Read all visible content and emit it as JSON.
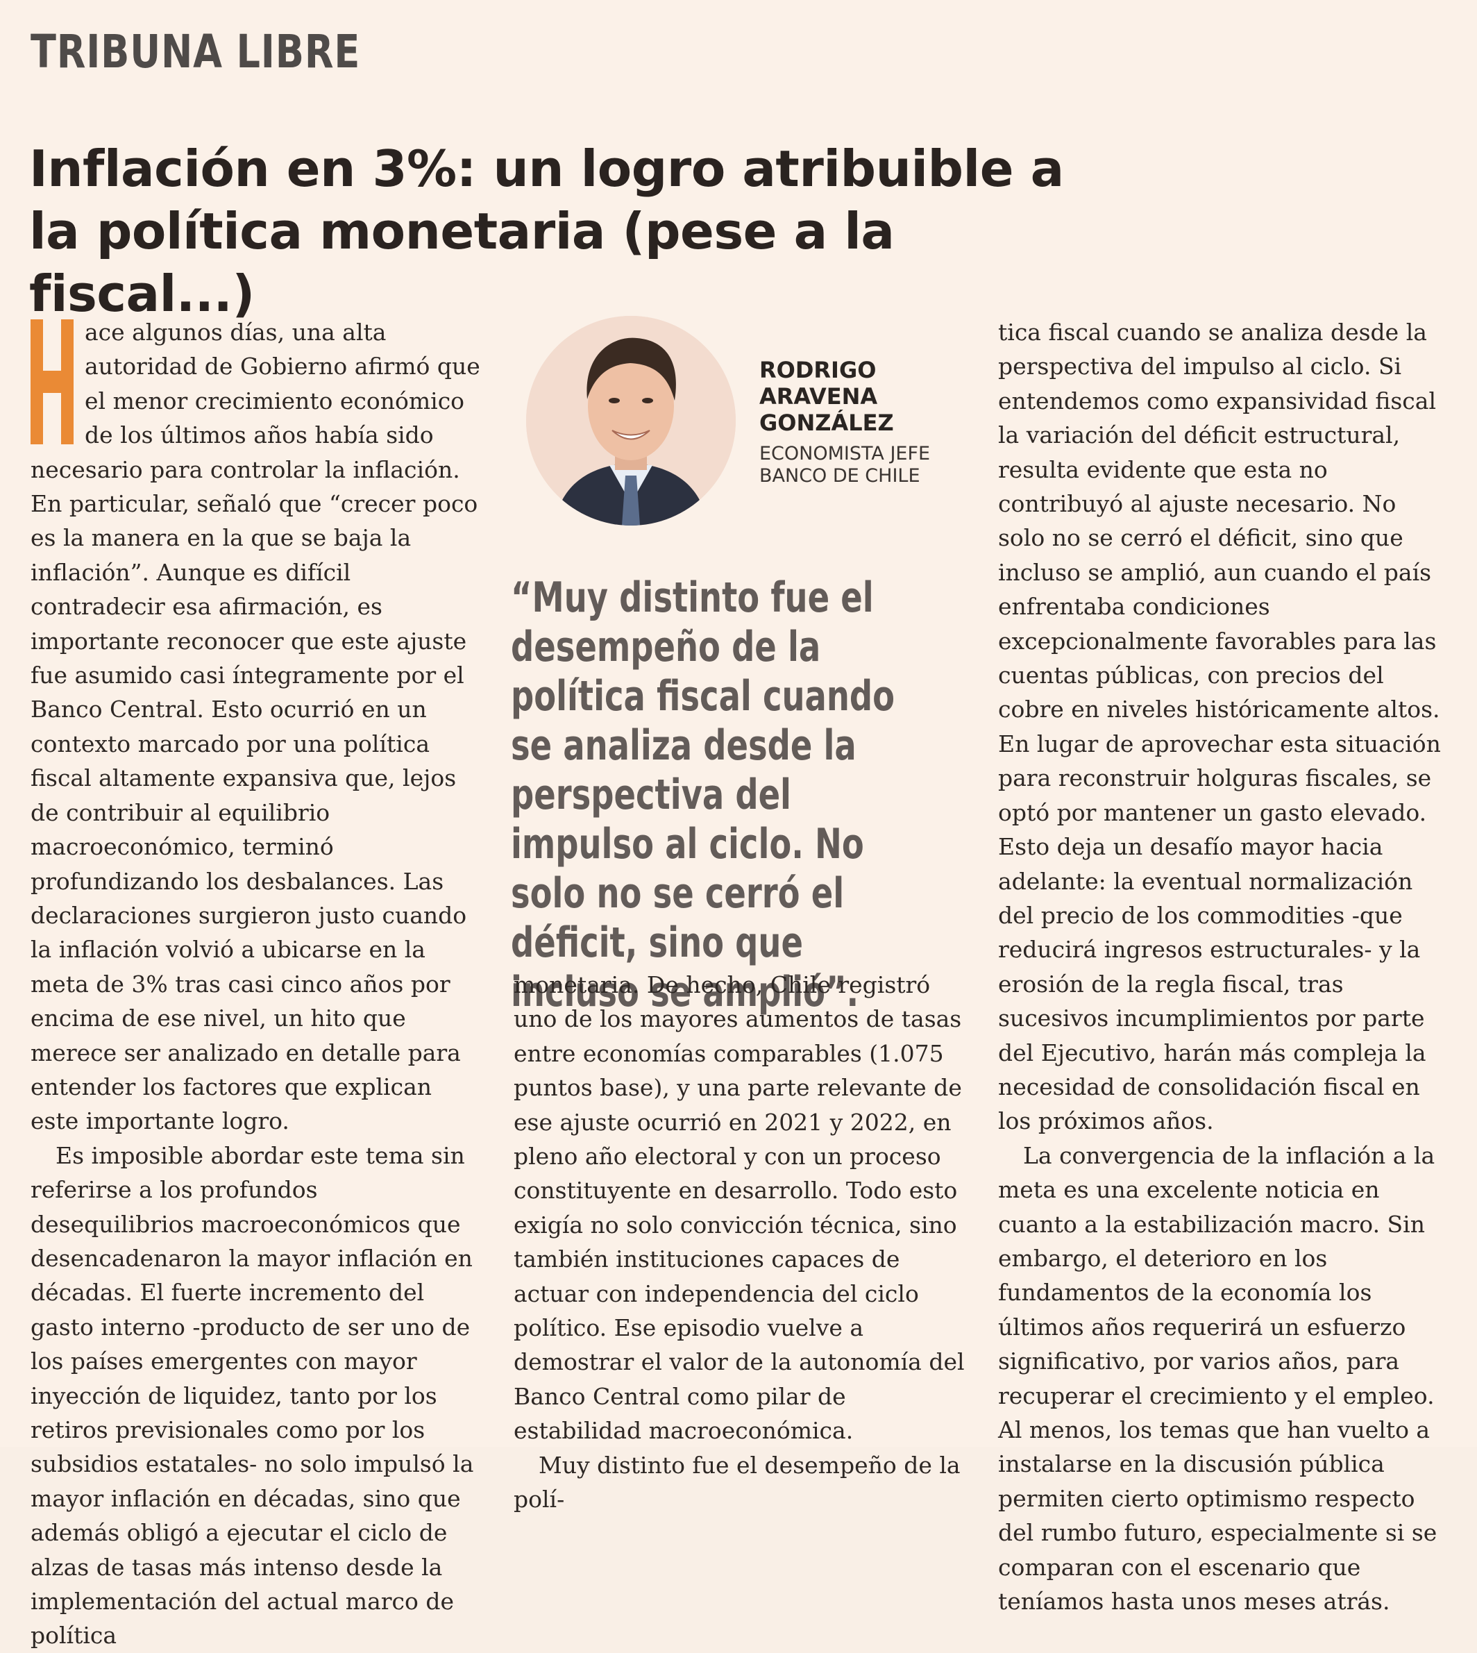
{
  "section": "TRIBUNA LIBRE",
  "headline": "Inflación en 3%: un logro atribuible a la política monetaria (pese a la fiscal...)",
  "dropcap_letter": "H",
  "author": {
    "name_line1": "RODRIGO",
    "name_line2": "ARAVENA",
    "name_line3": "GONZÁLEZ",
    "role_line1": "ECONOMISTA JEFE",
    "role_line2": "BANCO DE CHILE"
  },
  "pull_quote": "“Muy distinto fue el desempeño de la política fiscal cuando se analiza desde la perspectiva del impulso al ciclo. No solo no se cerró el déficit, sino que incluso se amplió”.",
  "body": {
    "p1": "ace algunos días, una alta autoridad de Gobierno afirmó que el menor crecimiento económico de los últimos años había sido necesario para controlar la inflación. En particular, señaló que “crecer poco es la manera en la que se baja la inflación”. Aunque es difícil contradecir esa afirmación, es importante reconocer que este ajuste fue asumido casi íntegramente por el Banco Central. Esto ocurrió en un contexto marcado por una política fiscal altamente expansiva que, lejos de contribuir al equilibrio macroeconómico, terminó profundizando los desbalances. Las declaraciones surgieron justo cuando la inflación volvió a ubicarse en la meta de 3% tras casi cinco años por encima de ese nivel, un hito que merece ser analizado en detalle para entender los factores que explican este importante logro.",
    "p2": "Es imposible abordar este tema sin referirse a los profundos desequilibrios macroeconómicos que desencadenaron la mayor inflación en décadas. El fuerte incremento del gasto interno -producto de ser uno de los países emergentes con mayor inyección de liquidez, tanto por los retiros previsionales como por los subsidios estatales- no solo impulsó la mayor inflación en décadas, sino que además obligó a ejecutar el ciclo de alzas de tasas más intenso desde la implementación del actual marco de política",
    "p3": "monetaria. De hecho, Chile registró uno de los mayores aumentos de tasas entre economías comparables (1.075 puntos base), y una parte relevante de ese ajuste ocurrió en 2021 y 2022, en pleno año electoral y con un proceso constituyente en desarrollo. Todo esto exigía no solo convicción técnica, sino también instituciones capaces de actuar con independencia del ciclo político. Ese episodio vuelve a demostrar el valor de la autonomía del Banco Central como pilar de estabilidad macroeconómica.",
    "p4": "Muy distinto fue el desempeño de la polí-",
    "p5": "tica fiscal cuando se analiza desde la perspectiva del impulso al ciclo. Si entendemos como expansividad fiscal la variación del déficit estructural, resulta evidente que esta no contribuyó al ajuste necesario. No solo no se cerró el déficit, sino que incluso se amplió, aun cuando el país enfrentaba condiciones excepcionalmente favorables para las cuentas públicas, con precios del cobre en niveles históricamente altos. En lugar de aprovechar esta situación para reconstruir holguras fiscales, se optó por mantener un gasto elevado. Esto deja un desafío mayor hacia adelante: la eventual normalización del precio de los commodities -que reducirá ingresos estructurales- y la erosión de la regla fiscal, tras sucesivos incumplimientos por parte del Ejecutivo, harán más compleja la necesidad de consolidación fiscal en los próximos años.",
    "p6": "La convergencia de la inflación a la meta es una excelente noticia en cuanto a la estabilización macro. Sin embargo, el deterioro en los fundamentos de la economía los últimos años requerirá un esfuerzo significativo, por varios años, para recuperar el crecimiento y el empleo. Al menos, los temas que han vuelto a instalarse en la discusión pública permiten cierto optimismo respecto del rumbo futuro, especialmente si se comparan con el escenario que teníamos hasta unos meses atrás."
  },
  "colors": {
    "background": "#fbf1e8",
    "accent": "#ea8a35",
    "quote": "#635c59"
  }
}
